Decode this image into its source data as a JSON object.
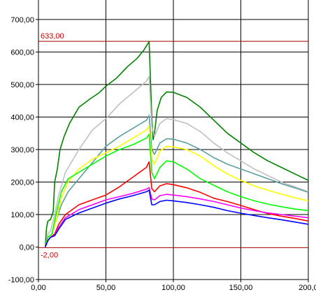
{
  "chart_data": {
    "type": "line",
    "title": "",
    "xlabel": "",
    "ylabel": "",
    "xlim": [
      0,
      200
    ],
    "ylim": [
      -100,
      760
    ],
    "grid": true,
    "x_ticks": [
      "0,00",
      "50,00",
      "100,00",
      "150,00",
      "200,0"
    ],
    "y_ticks": [
      "-100,00",
      "0,00",
      "100,00",
      "200,00",
      "300,00",
      "400,00",
      "500,00",
      "600,00",
      "700,00"
    ],
    "x_tick_values": [
      0,
      50,
      100,
      150,
      200
    ],
    "y_tick_values": [
      -100,
      0,
      100,
      200,
      300,
      400,
      500,
      600,
      700
    ],
    "reference_lines": [
      {
        "label": "633,00",
        "value": 633,
        "color": "#a00000"
      },
      {
        "label": "-2,00",
        "value": -2,
        "color": "#a00000"
      }
    ],
    "series": [
      {
        "color": "#008000",
        "points": [
          [
            5,
            0
          ],
          [
            6,
            60
          ],
          [
            7,
            80
          ],
          [
            9,
            85
          ],
          [
            11,
            110
          ],
          [
            12,
            200
          ],
          [
            14,
            240
          ],
          [
            16,
            300
          ],
          [
            19,
            340
          ],
          [
            23,
            380
          ],
          [
            30,
            430
          ],
          [
            38,
            455
          ],
          [
            45,
            475
          ],
          [
            50,
            495
          ],
          [
            58,
            520
          ],
          [
            66,
            555
          ],
          [
            73,
            580
          ],
          [
            78,
            605
          ],
          [
            82,
            632
          ],
          [
            84,
            400
          ],
          [
            85,
            330
          ],
          [
            86,
            350
          ],
          [
            88,
            420
          ],
          [
            91,
            460
          ],
          [
            95,
            477
          ],
          [
            100,
            476
          ],
          [
            110,
            460
          ],
          [
            120,
            430
          ],
          [
            130,
            390
          ],
          [
            140,
            350
          ],
          [
            150,
            320
          ],
          [
            160,
            290
          ],
          [
            170,
            265
          ],
          [
            180,
            245
          ],
          [
            190,
            225
          ],
          [
            200,
            205
          ]
        ]
      },
      {
        "color": "#c0c0c0",
        "points": [
          [
            5,
            0
          ],
          [
            7,
            40
          ],
          [
            9,
            50
          ],
          [
            12,
            100
          ],
          [
            15,
            160
          ],
          [
            20,
            230
          ],
          [
            30,
            300
          ],
          [
            40,
            360
          ],
          [
            50,
            395
          ],
          [
            60,
            440
          ],
          [
            70,
            475
          ],
          [
            80,
            510
          ],
          [
            82,
            525
          ],
          [
            84,
            370
          ],
          [
            86,
            340
          ],
          [
            90,
            380
          ],
          [
            95,
            395
          ],
          [
            100,
            392
          ],
          [
            110,
            380
          ],
          [
            120,
            355
          ],
          [
            130,
            320
          ],
          [
            140,
            290
          ],
          [
            150,
            265
          ],
          [
            160,
            240
          ],
          [
            170,
            220
          ],
          [
            180,
            200
          ],
          [
            190,
            185
          ],
          [
            200,
            170
          ]
        ]
      },
      {
        "color": "#5f9ea0",
        "points": [
          [
            5,
            0
          ],
          [
            7,
            30
          ],
          [
            10,
            40
          ],
          [
            13,
            80
          ],
          [
            17,
            130
          ],
          [
            22,
            170
          ],
          [
            30,
            210
          ],
          [
            40,
            260
          ],
          [
            50,
            310
          ],
          [
            60,
            340
          ],
          [
            70,
            365
          ],
          [
            80,
            390
          ],
          [
            82,
            405
          ],
          [
            84,
            300
          ],
          [
            86,
            285
          ],
          [
            90,
            320
          ],
          [
            95,
            333
          ],
          [
            100,
            332
          ],
          [
            110,
            320
          ],
          [
            120,
            300
          ],
          [
            130,
            275
          ],
          [
            140,
            255
          ],
          [
            150,
            240
          ],
          [
            160,
            225
          ],
          [
            170,
            210
          ],
          [
            180,
            195
          ],
          [
            190,
            182
          ],
          [
            200,
            168
          ]
        ]
      },
      {
        "color": "#ffff00",
        "points": [
          [
            5,
            0
          ],
          [
            7,
            30
          ],
          [
            10,
            40
          ],
          [
            13,
            80
          ],
          [
            17,
            150
          ],
          [
            22,
            200
          ],
          [
            30,
            240
          ],
          [
            40,
            270
          ],
          [
            50,
            290
          ],
          [
            60,
            310
          ],
          [
            70,
            335
          ],
          [
            80,
            360
          ],
          [
            82,
            372
          ],
          [
            84,
            270
          ],
          [
            86,
            255
          ],
          [
            90,
            295
          ],
          [
            95,
            310
          ],
          [
            100,
            308
          ],
          [
            110,
            300
          ],
          [
            120,
            280
          ],
          [
            130,
            250
          ],
          [
            140,
            225
          ],
          [
            150,
            205
          ],
          [
            160,
            188
          ],
          [
            170,
            175
          ],
          [
            180,
            163
          ],
          [
            190,
            152
          ],
          [
            200,
            142
          ]
        ]
      },
      {
        "color": "#00ff00",
        "points": [
          [
            5,
            0
          ],
          [
            7,
            30
          ],
          [
            10,
            40
          ],
          [
            13,
            100
          ],
          [
            17,
            170
          ],
          [
            22,
            210
          ],
          [
            30,
            230
          ],
          [
            40,
            255
          ],
          [
            50,
            280
          ],
          [
            60,
            300
          ],
          [
            70,
            315
          ],
          [
            80,
            335
          ],
          [
            82,
            347
          ],
          [
            84,
            230
          ],
          [
            86,
            210
          ],
          [
            90,
            245
          ],
          [
            95,
            265
          ],
          [
            100,
            262
          ],
          [
            110,
            240
          ],
          [
            120,
            210
          ],
          [
            130,
            190
          ],
          [
            140,
            170
          ],
          [
            150,
            155
          ],
          [
            160,
            142
          ],
          [
            170,
            132
          ],
          [
            180,
            124
          ],
          [
            190,
            117
          ],
          [
            200,
            112
          ]
        ]
      },
      {
        "color": "#ff0000",
        "points": [
          [
            5,
            0
          ],
          [
            7,
            20
          ],
          [
            9,
            30
          ],
          [
            12,
            40
          ],
          [
            15,
            70
          ],
          [
            20,
            100
          ],
          [
            30,
            130
          ],
          [
            40,
            145
          ],
          [
            50,
            160
          ],
          [
            60,
            185
          ],
          [
            70,
            215
          ],
          [
            80,
            245
          ],
          [
            82,
            262
          ],
          [
            84,
            180
          ],
          [
            86,
            170
          ],
          [
            90,
            188
          ],
          [
            95,
            195
          ],
          [
            100,
            192
          ],
          [
            110,
            182
          ],
          [
            120,
            168
          ],
          [
            130,
            150
          ],
          [
            140,
            140
          ],
          [
            150,
            128
          ],
          [
            160,
            115
          ],
          [
            170,
            103
          ],
          [
            180,
            95
          ],
          [
            190,
            88
          ],
          [
            200,
            80
          ]
        ]
      },
      {
        "color": "#ff00ff",
        "points": [
          [
            5,
            0
          ],
          [
            7,
            20
          ],
          [
            9,
            30
          ],
          [
            12,
            35
          ],
          [
            15,
            60
          ],
          [
            20,
            90
          ],
          [
            30,
            115
          ],
          [
            40,
            130
          ],
          [
            50,
            145
          ],
          [
            60,
            155
          ],
          [
            70,
            165
          ],
          [
            80,
            178
          ],
          [
            82,
            183
          ],
          [
            84,
            148
          ],
          [
            86,
            145
          ],
          [
            90,
            158
          ],
          [
            95,
            162
          ],
          [
            100,
            160
          ],
          [
            110,
            155
          ],
          [
            120,
            148
          ],
          [
            130,
            140
          ],
          [
            140,
            130
          ],
          [
            150,
            120
          ],
          [
            160,
            112
          ],
          [
            170,
            105
          ],
          [
            180,
            100
          ],
          [
            190,
            95
          ],
          [
            200,
            90
          ]
        ]
      },
      {
        "color": "#0000ff",
        "points": [
          [
            5,
            0
          ],
          [
            7,
            20
          ],
          [
            9,
            30
          ],
          [
            12,
            35
          ],
          [
            15,
            55
          ],
          [
            20,
            85
          ],
          [
            30,
            105
          ],
          [
            40,
            120
          ],
          [
            50,
            135
          ],
          [
            60,
            148
          ],
          [
            70,
            158
          ],
          [
            80,
            170
          ],
          [
            82,
            175
          ],
          [
            84,
            130
          ],
          [
            86,
            130
          ],
          [
            90,
            140
          ],
          [
            95,
            144
          ],
          [
            100,
            142
          ],
          [
            110,
            137
          ],
          [
            120,
            130
          ],
          [
            130,
            122
          ],
          [
            140,
            112
          ],
          [
            150,
            104
          ],
          [
            160,
            97
          ],
          [
            170,
            90
          ],
          [
            180,
            84
          ],
          [
            190,
            77
          ],
          [
            200,
            70
          ]
        ]
      }
    ]
  }
}
